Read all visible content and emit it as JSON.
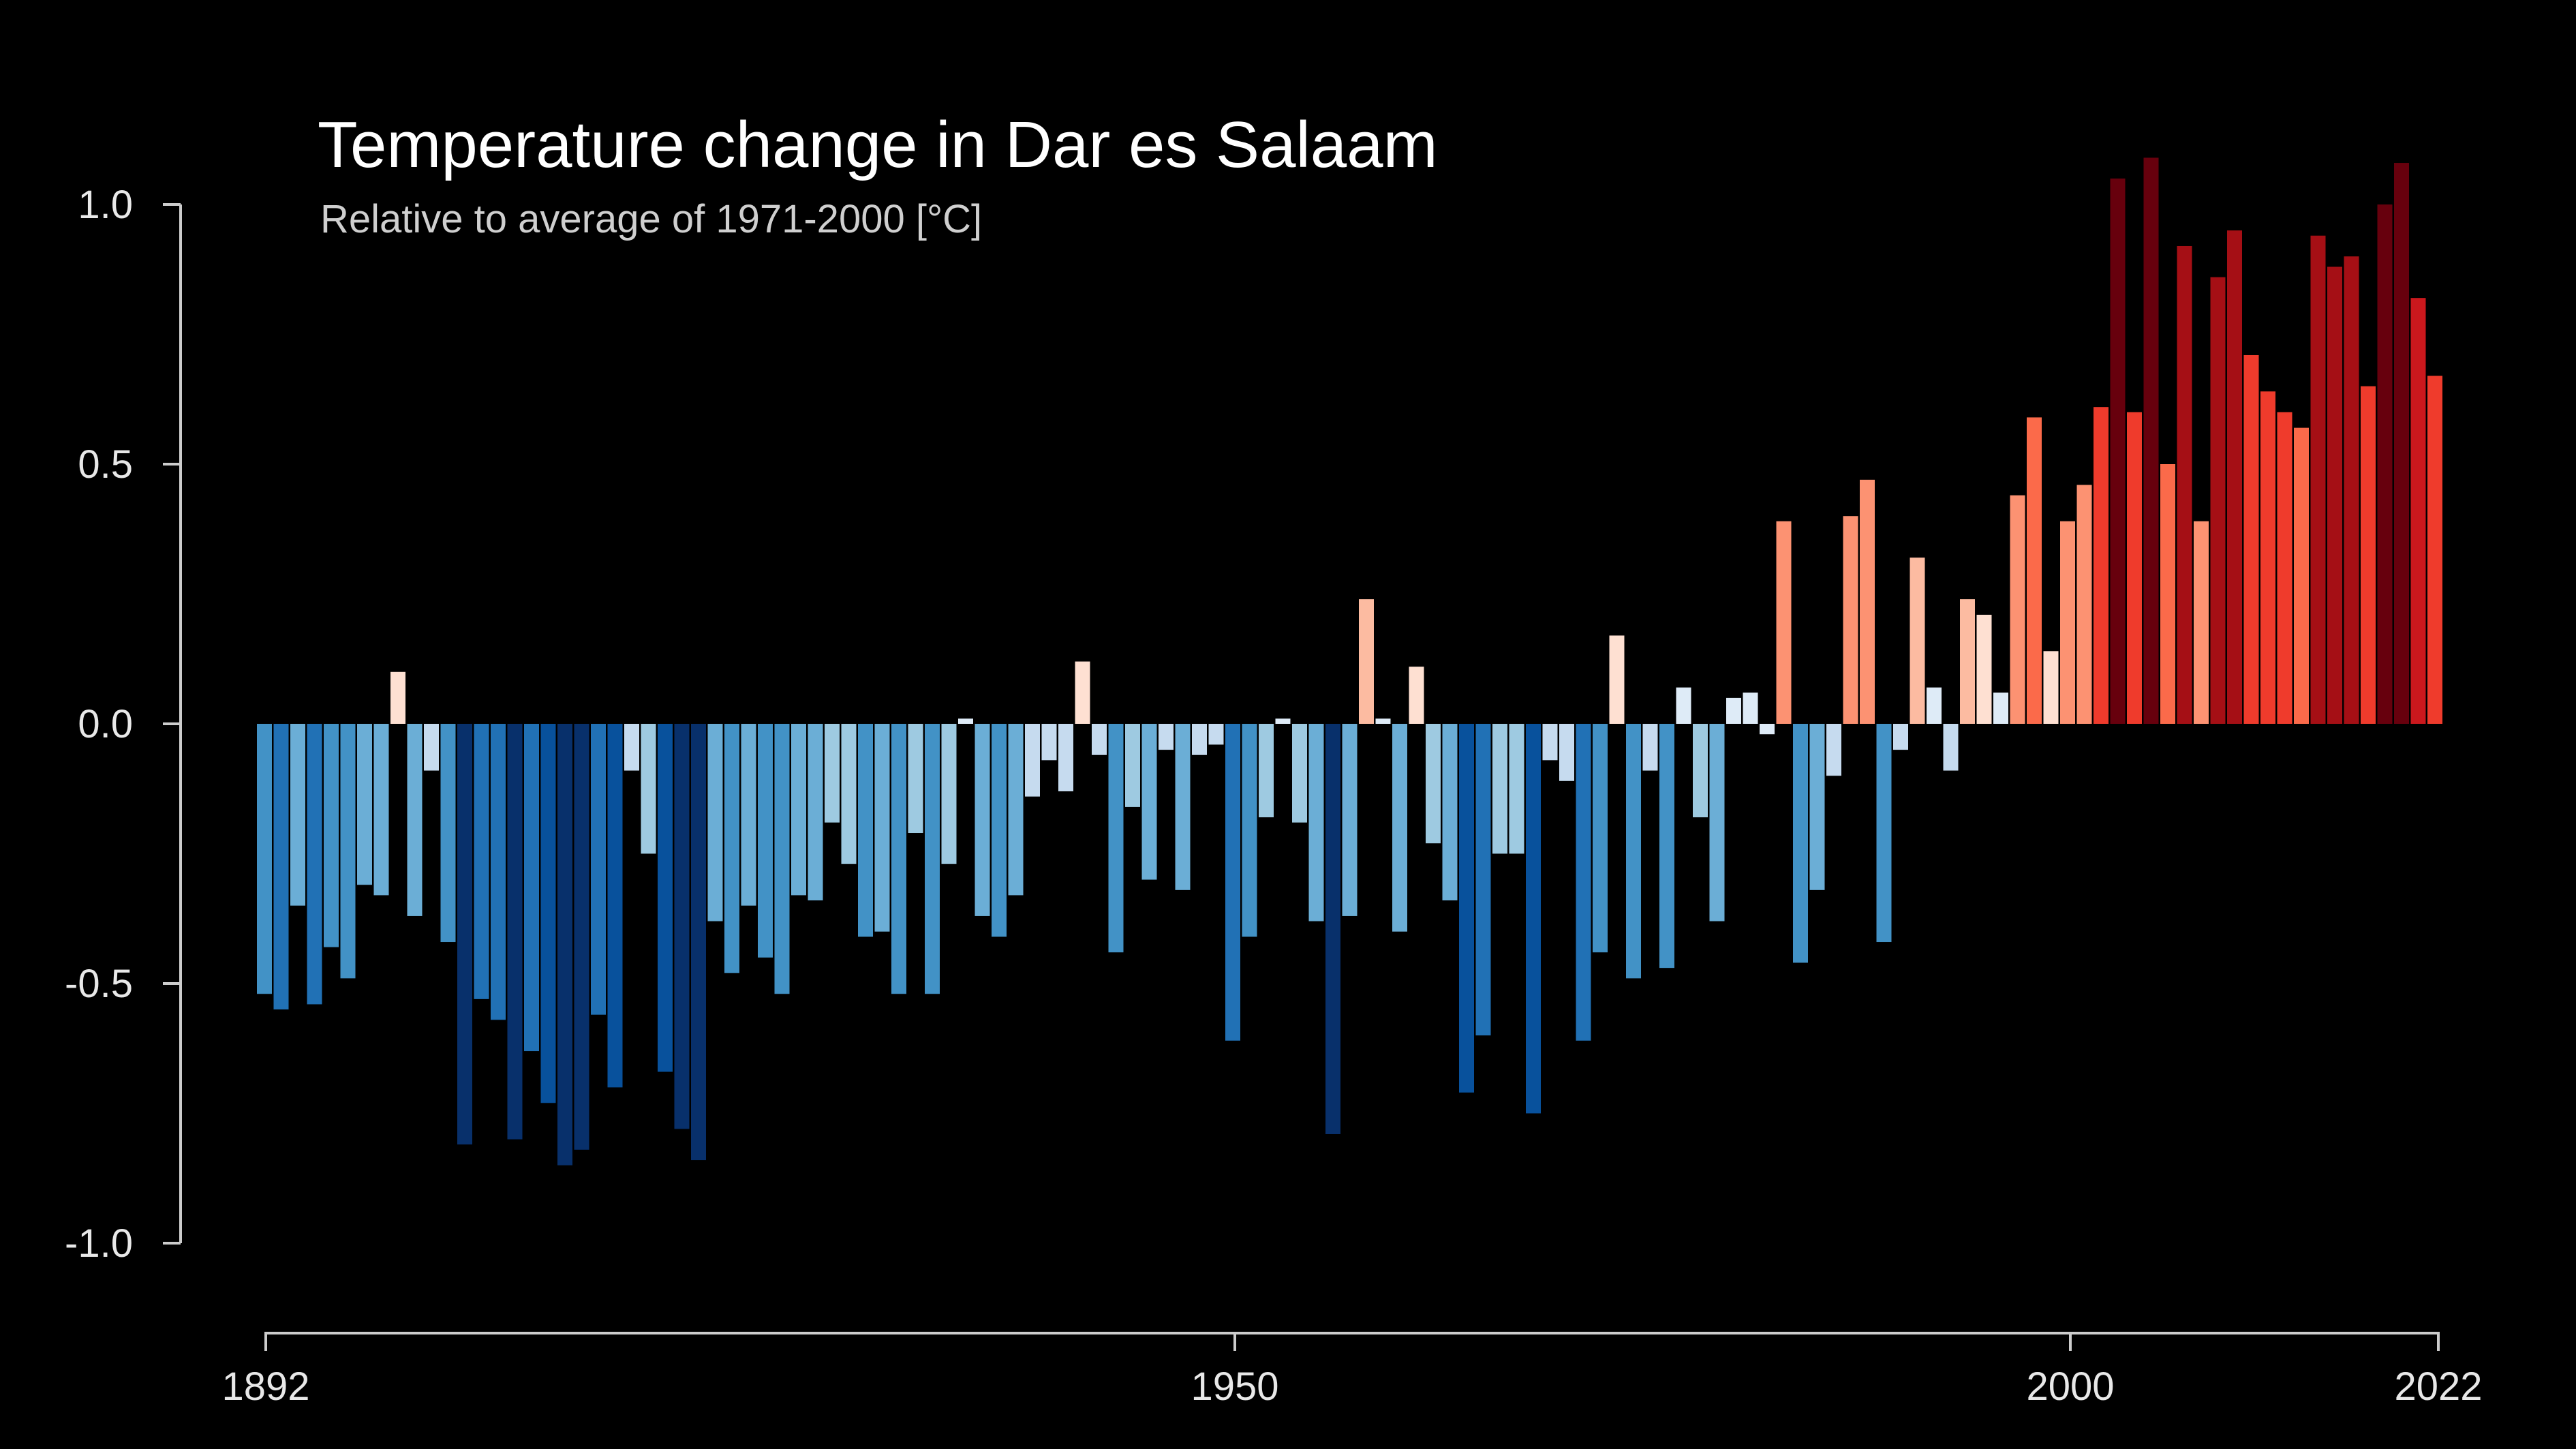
{
  "title": "Temperature change in Dar es Salaam",
  "subtitle": "Relative to average of 1971-2000  [°C]",
  "chart_data": {
    "type": "bar",
    "ylim": [
      -1.0,
      1.1
    ],
    "y_ticks": [
      1.0,
      0.5,
      0.0,
      -0.5,
      -1.0
    ],
    "y_tick_labels": [
      "1.0",
      "0.5",
      "0.0",
      "-0.5",
      "-1.0"
    ],
    "x_ticks": [
      1892,
      1950,
      2000,
      2022
    ],
    "x_tick_labels": [
      "1892",
      "1950",
      "2000",
      "2022"
    ],
    "xlim": [
      1892,
      2022
    ],
    "colors": {
      "background": "#000000",
      "axis": "#cccccc",
      "scale": [
        "#08306b",
        "#08519c",
        "#2171b5",
        "#4292c6",
        "#6baed6",
        "#9ecae1",
        "#c6dbef",
        "#deebf7",
        "#fee0d2",
        "#fcbba1",
        "#fc9272",
        "#fb6a4a",
        "#ef3b2c",
        "#cb181d",
        "#a50f15",
        "#67000d"
      ]
    },
    "years": [
      1892,
      1893,
      1894,
      1895,
      1896,
      1897,
      1898,
      1899,
      1900,
      1901,
      1902,
      1903,
      1904,
      1905,
      1906,
      1907,
      1908,
      1909,
      1910,
      1911,
      1912,
      1913,
      1914,
      1915,
      1916,
      1917,
      1918,
      1919,
      1920,
      1921,
      1922,
      1923,
      1924,
      1925,
      1926,
      1927,
      1928,
      1929,
      1930,
      1931,
      1932,
      1933,
      1934,
      1935,
      1936,
      1937,
      1938,
      1939,
      1940,
      1941,
      1942,
      1943,
      1944,
      1945,
      1946,
      1947,
      1948,
      1949,
      1950,
      1951,
      1952,
      1953,
      1954,
      1955,
      1956,
      1957,
      1958,
      1959,
      1960,
      1961,
      1962,
      1963,
      1964,
      1965,
      1966,
      1967,
      1968,
      1969,
      1970,
      1971,
      1972,
      1973,
      1974,
      1975,
      1976,
      1977,
      1978,
      1979,
      1980,
      1981,
      1982,
      1983,
      1984,
      1985,
      1986,
      1987,
      1988,
      1989,
      1990,
      1991,
      1992,
      1993,
      1994,
      1995,
      1996,
      1997,
      1998,
      1999,
      2000,
      2001,
      2002,
      2003,
      2004,
      2005,
      2006,
      2007,
      2008,
      2009,
      2010,
      2011,
      2012,
      2013,
      2014,
      2015,
      2016,
      2017,
      2018,
      2019,
      2020,
      2021,
      2022
    ],
    "values": [
      -0.52,
      -0.55,
      -0.35,
      -0.54,
      -0.43,
      -0.49,
      -0.31,
      -0.33,
      0.1,
      -0.37,
      -0.09,
      -0.42,
      -0.81,
      -0.53,
      -0.57,
      -0.8,
      -0.63,
      -0.73,
      -0.85,
      -0.82,
      -0.56,
      -0.7,
      -0.09,
      -0.25,
      -0.67,
      -0.78,
      -0.84,
      -0.38,
      -0.48,
      -0.35,
      -0.45,
      -0.52,
      -0.33,
      -0.34,
      -0.19,
      -0.27,
      -0.41,
      -0.4,
      -0.52,
      -0.21,
      -0.52,
      -0.27,
      0.01,
      -0.37,
      -0.41,
      -0.33,
      -0.14,
      -0.07,
      -0.13,
      0.12,
      -0.06,
      -0.44,
      -0.16,
      -0.3,
      -0.05,
      -0.32,
      -0.06,
      -0.04,
      -0.61,
      -0.41,
      -0.18,
      0.01,
      -0.19,
      -0.38,
      -0.79,
      -0.37,
      0.24,
      0.01,
      -0.4,
      0.11,
      -0.23,
      -0.34,
      -0.71,
      -0.6,
      -0.25,
      -0.25,
      -0.75,
      -0.07,
      -0.11,
      -0.61,
      -0.44,
      0.17,
      -0.49,
      -0.09,
      -0.47,
      0.07,
      -0.18,
      -0.38,
      0.05,
      0.06,
      -0.02,
      0.39,
      -0.46,
      -0.32,
      -0.1,
      0.4,
      0.47,
      -0.42,
      -0.05,
      0.32,
      0.07,
      -0.09,
      0.24,
      0.21,
      0.06,
      0.44,
      0.59,
      0.14,
      0.39,
      0.46,
      0.61,
      1.05,
      0.6,
      1.09,
      0.5,
      0.92,
      0.39,
      0.86,
      0.95,
      0.71,
      0.64,
      0.6,
      0.57,
      0.94,
      0.88,
      0.9,
      0.65,
      1.0,
      1.08,
      0.82,
      0.67
    ]
  }
}
